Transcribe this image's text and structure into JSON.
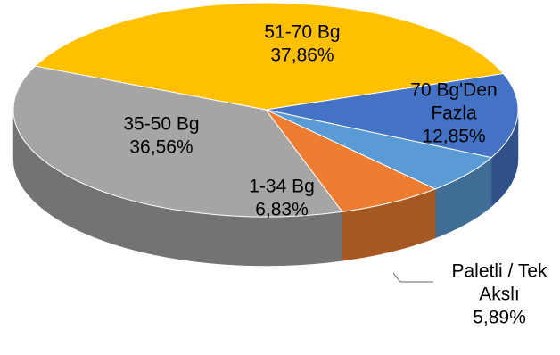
{
  "chart_data": {
    "type": "pie",
    "style": "3d",
    "slices": [
      {
        "label_lines": [
          "51-70 Bg"
        ],
        "percent_text": "37,86%",
        "value": 37.86,
        "color": "#FFC000"
      },
      {
        "label_lines": [
          "70 Bg'Den",
          "Fazla"
        ],
        "percent_text": "12,85%",
        "value": 12.85,
        "color": "#4472C4"
      },
      {
        "label_lines": [
          "Paletli / Tek",
          "Akslı"
        ],
        "percent_text": "5,89%",
        "value": 5.89,
        "color": "#5B9BD5"
      },
      {
        "label_lines": [
          "1-34 Bg"
        ],
        "percent_text": "6,83%",
        "value": 6.83,
        "color": "#ED7D31"
      },
      {
        "label_lines": [
          "35-50 Bg"
        ],
        "percent_text": "36,56%",
        "value": 36.56,
        "color": "#A5A5A5"
      }
    ]
  }
}
